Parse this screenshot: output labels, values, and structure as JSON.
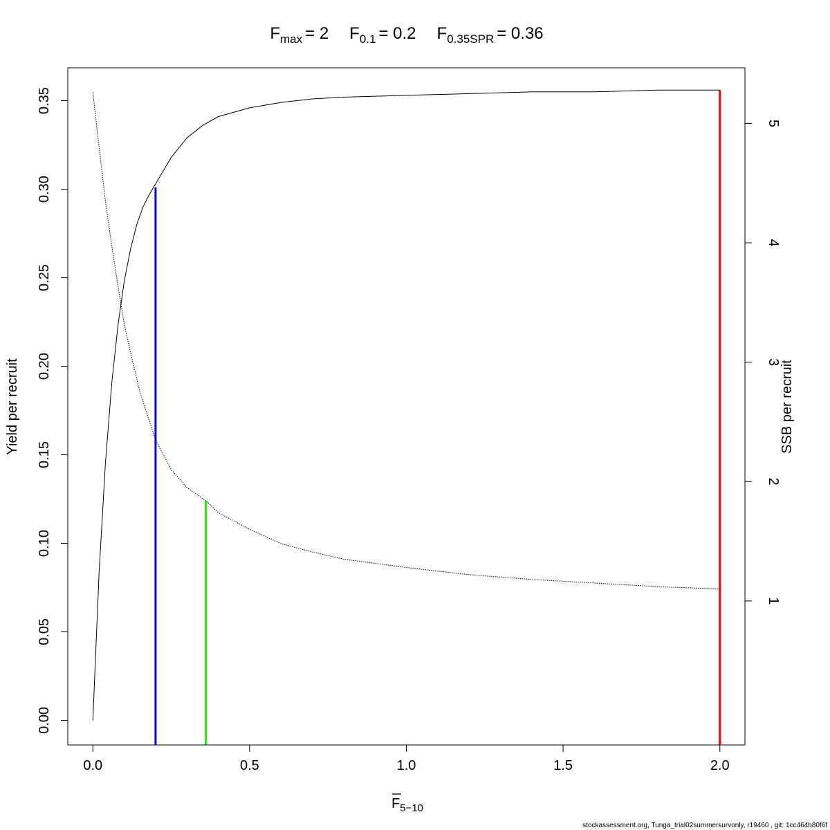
{
  "title": {
    "fmax_label": "F",
    "fmax_sub": "max",
    "fmax_val": "= 2",
    "f01_label": "F",
    "f01_sub": "0.1",
    "f01_val": "= 0.2",
    "fspr_label": "F",
    "fspr_sub": "0.35SPR",
    "fspr_val": "= 0.36"
  },
  "footer": "stockassessment.org, Tunga_trial02summersurvonly, r19460 , git: 1cc464b80f6f",
  "chart_data": {
    "type": "line",
    "xlabel": {
      "main": "F",
      "sub": "5−10",
      "overbar": true
    },
    "ylabel_left": "Yield per recruit",
    "ylabel_right": "SSB per recruit",
    "xlim": [
      -0.08,
      2.08
    ],
    "ylim_left": [
      -0.0139,
      0.3686
    ],
    "ylim_right": [
      -0.206,
      5.466
    ],
    "x_ticks": [
      "0.0",
      "0.5",
      "1.0",
      "1.5",
      "2.0"
    ],
    "y_left_ticks": [
      "0.00",
      "0.05",
      "0.10",
      "0.15",
      "0.20",
      "0.25",
      "0.30",
      "0.35"
    ],
    "y_right_ticks": [
      "1",
      "2",
      "3",
      "4",
      "5"
    ],
    "grid": false,
    "legend": "none",
    "series": [
      {
        "axis": "left",
        "style": "solid",
        "color": "#000000",
        "x": [
          0,
          0.02,
          0.04,
          0.06,
          0.08,
          0.1,
          0.12,
          0.14,
          0.16,
          0.18,
          0.2,
          0.25,
          0.3,
          0.35,
          0.4,
          0.5,
          0.6,
          0.7,
          0.8,
          1.0,
          1.2,
          1.4,
          1.6,
          1.8,
          2.0
        ],
        "y": [
          0,
          0.084,
          0.145,
          0.19,
          0.223,
          0.248,
          0.266,
          0.28,
          0.29,
          0.297,
          0.303,
          0.318,
          0.329,
          0.336,
          0.341,
          0.346,
          0.349,
          0.351,
          0.352,
          0.353,
          0.354,
          0.355,
          0.355,
          0.356,
          0.356
        ]
      },
      {
        "axis": "right",
        "style": "dotted",
        "color": "#000000",
        "x": [
          0,
          0.02,
          0.04,
          0.06,
          0.08,
          0.1,
          0.12,
          0.15,
          0.2,
          0.25,
          0.3,
          0.36,
          0.4,
          0.5,
          0.6,
          0.7,
          0.8,
          1.0,
          1.2,
          1.4,
          1.6,
          1.8,
          2.0
        ],
        "y": [
          5.26,
          4.8,
          4.35,
          3.98,
          3.64,
          3.32,
          3.08,
          2.75,
          2.35,
          2.1,
          1.95,
          1.84,
          1.74,
          1.6,
          1.48,
          1.41,
          1.35,
          1.28,
          1.22,
          1.18,
          1.15,
          1.12,
          1.1
        ]
      }
    ],
    "reference_lines": [
      {
        "name": "F0.1",
        "x": 0.2,
        "ytop": 0.301,
        "axis": "left",
        "color": "#0000ff"
      },
      {
        "name": "F0.35SPR",
        "x": 0.36,
        "ytop": 1.84,
        "axis": "right",
        "color": "#00ff00"
      },
      {
        "name": "Fmax",
        "x": 2.0,
        "ytop": 0.356,
        "axis": "left",
        "color": "#ff0000"
      }
    ]
  }
}
